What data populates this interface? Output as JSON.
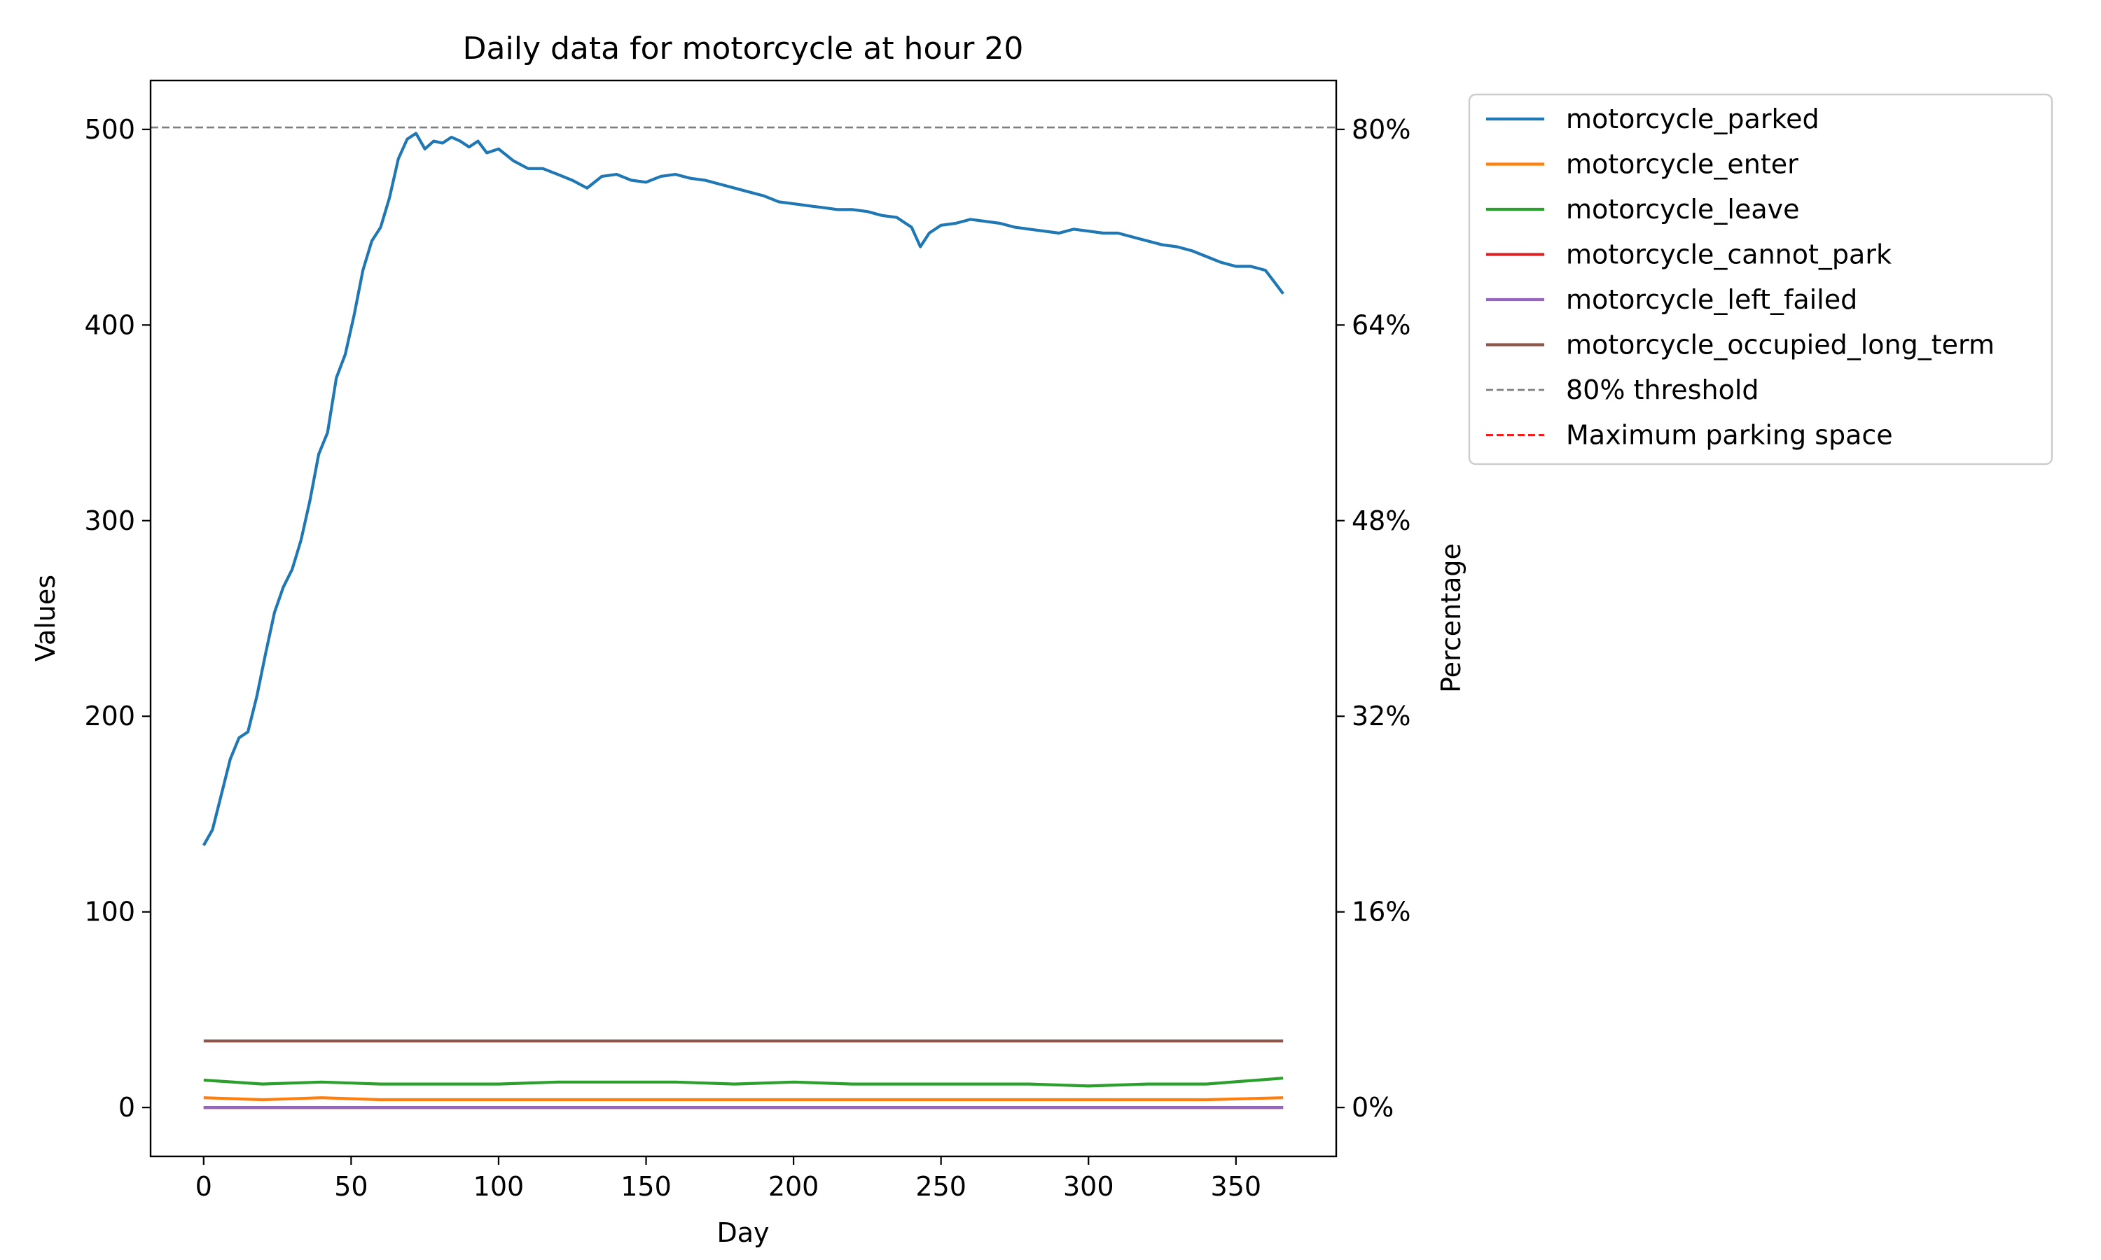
{
  "chart_data": {
    "type": "line",
    "title": "Daily data for motorcycle at hour 20",
    "xlabel": "Day",
    "ylabel": "Values",
    "y2label": "Percentage",
    "xlim": [
      -18,
      384
    ],
    "ylim": [
      -25,
      525
    ],
    "x_ticks": [
      0,
      50,
      100,
      150,
      200,
      250,
      300,
      350
    ],
    "y_ticks": [
      0,
      100,
      200,
      300,
      400,
      500
    ],
    "y2_ticks": [
      {
        "value": 0,
        "label": "0%"
      },
      {
        "value": 100,
        "label": "16%"
      },
      {
        "value": 200,
        "label": "32%"
      },
      {
        "value": 300,
        "label": "48%"
      },
      {
        "value": 400,
        "label": "64%"
      },
      {
        "value": 500,
        "label": "80%"
      }
    ],
    "legend_position": "outside-upper-right",
    "grid": false,
    "threshold": {
      "name": "80% threshold",
      "value": 501,
      "color": "#7f7f7f"
    },
    "max_space": {
      "name": "Maximum parking space",
      "color": "#ff0000"
    },
    "series": [
      {
        "name": "motorcycle_parked",
        "color": "#1f77b4",
        "points": [
          [
            0,
            134
          ],
          [
            3,
            142
          ],
          [
            6,
            160
          ],
          [
            9,
            178
          ],
          [
            12,
            189
          ],
          [
            15,
            192
          ],
          [
            18,
            210
          ],
          [
            21,
            232
          ],
          [
            24,
            253
          ],
          [
            27,
            266
          ],
          [
            30,
            275
          ],
          [
            33,
            290
          ],
          [
            36,
            310
          ],
          [
            39,
            334
          ],
          [
            42,
            345
          ],
          [
            45,
            373
          ],
          [
            48,
            385
          ],
          [
            51,
            405
          ],
          [
            54,
            428
          ],
          [
            57,
            443
          ],
          [
            60,
            450
          ],
          [
            63,
            465
          ],
          [
            66,
            485
          ],
          [
            69,
            495
          ],
          [
            72,
            498
          ],
          [
            75,
            490
          ],
          [
            78,
            494
          ],
          [
            81,
            493
          ],
          [
            84,
            496
          ],
          [
            87,
            494
          ],
          [
            90,
            491
          ],
          [
            93,
            494
          ],
          [
            96,
            488
          ],
          [
            100,
            490
          ],
          [
            105,
            484
          ],
          [
            110,
            480
          ],
          [
            115,
            480
          ],
          [
            120,
            477
          ],
          [
            125,
            474
          ],
          [
            130,
            470
          ],
          [
            135,
            476
          ],
          [
            140,
            477
          ],
          [
            145,
            474
          ],
          [
            150,
            473
          ],
          [
            155,
            476
          ],
          [
            160,
            477
          ],
          [
            165,
            475
          ],
          [
            170,
            474
          ],
          [
            175,
            472
          ],
          [
            180,
            470
          ],
          [
            185,
            468
          ],
          [
            190,
            466
          ],
          [
            195,
            463
          ],
          [
            200,
            462
          ],
          [
            205,
            461
          ],
          [
            210,
            460
          ],
          [
            215,
            459
          ],
          [
            220,
            459
          ],
          [
            225,
            458
          ],
          [
            230,
            456
          ],
          [
            235,
            455
          ],
          [
            240,
            450
          ],
          [
            243,
            440
          ],
          [
            246,
            447
          ],
          [
            250,
            451
          ],
          [
            255,
            452
          ],
          [
            260,
            454
          ],
          [
            265,
            453
          ],
          [
            270,
            452
          ],
          [
            275,
            450
          ],
          [
            280,
            449
          ],
          [
            285,
            448
          ],
          [
            290,
            447
          ],
          [
            295,
            449
          ],
          [
            300,
            448
          ],
          [
            305,
            447
          ],
          [
            310,
            447
          ],
          [
            315,
            445
          ],
          [
            320,
            443
          ],
          [
            325,
            441
          ],
          [
            330,
            440
          ],
          [
            335,
            438
          ],
          [
            340,
            435
          ],
          [
            345,
            432
          ],
          [
            350,
            430
          ],
          [
            355,
            430
          ],
          [
            360,
            428
          ],
          [
            363,
            422
          ],
          [
            366,
            416
          ]
        ]
      },
      {
        "name": "motorcycle_enter",
        "color": "#ff7f0e",
        "points": [
          [
            0,
            5
          ],
          [
            20,
            4
          ],
          [
            40,
            5
          ],
          [
            60,
            4
          ],
          [
            80,
            4
          ],
          [
            100,
            4
          ],
          [
            120,
            4
          ],
          [
            140,
            4
          ],
          [
            160,
            4
          ],
          [
            180,
            4
          ],
          [
            200,
            4
          ],
          [
            220,
            4
          ],
          [
            240,
            4
          ],
          [
            260,
            4
          ],
          [
            280,
            4
          ],
          [
            300,
            4
          ],
          [
            320,
            4
          ],
          [
            340,
            4
          ],
          [
            366,
            5
          ]
        ]
      },
      {
        "name": "motorcycle_leave",
        "color": "#2ca02c",
        "points": [
          [
            0,
            14
          ],
          [
            20,
            12
          ],
          [
            40,
            13
          ],
          [
            60,
            12
          ],
          [
            80,
            12
          ],
          [
            100,
            12
          ],
          [
            120,
            13
          ],
          [
            140,
            13
          ],
          [
            160,
            13
          ],
          [
            180,
            12
          ],
          [
            200,
            13
          ],
          [
            220,
            12
          ],
          [
            240,
            12
          ],
          [
            260,
            12
          ],
          [
            280,
            12
          ],
          [
            300,
            11
          ],
          [
            320,
            12
          ],
          [
            340,
            12
          ],
          [
            366,
            15
          ]
        ]
      },
      {
        "name": "motorcycle_cannot_park",
        "color": "#d62728",
        "points": [
          [
            0,
            0
          ],
          [
            366,
            0
          ]
        ]
      },
      {
        "name": "motorcycle_left_failed",
        "color": "#9467bd",
        "points": [
          [
            0,
            0
          ],
          [
            366,
            0
          ]
        ]
      },
      {
        "name": "motorcycle_occupied_long_term",
        "color": "#8c564b",
        "points": [
          [
            0,
            34
          ],
          [
            366,
            34
          ]
        ]
      }
    ]
  }
}
